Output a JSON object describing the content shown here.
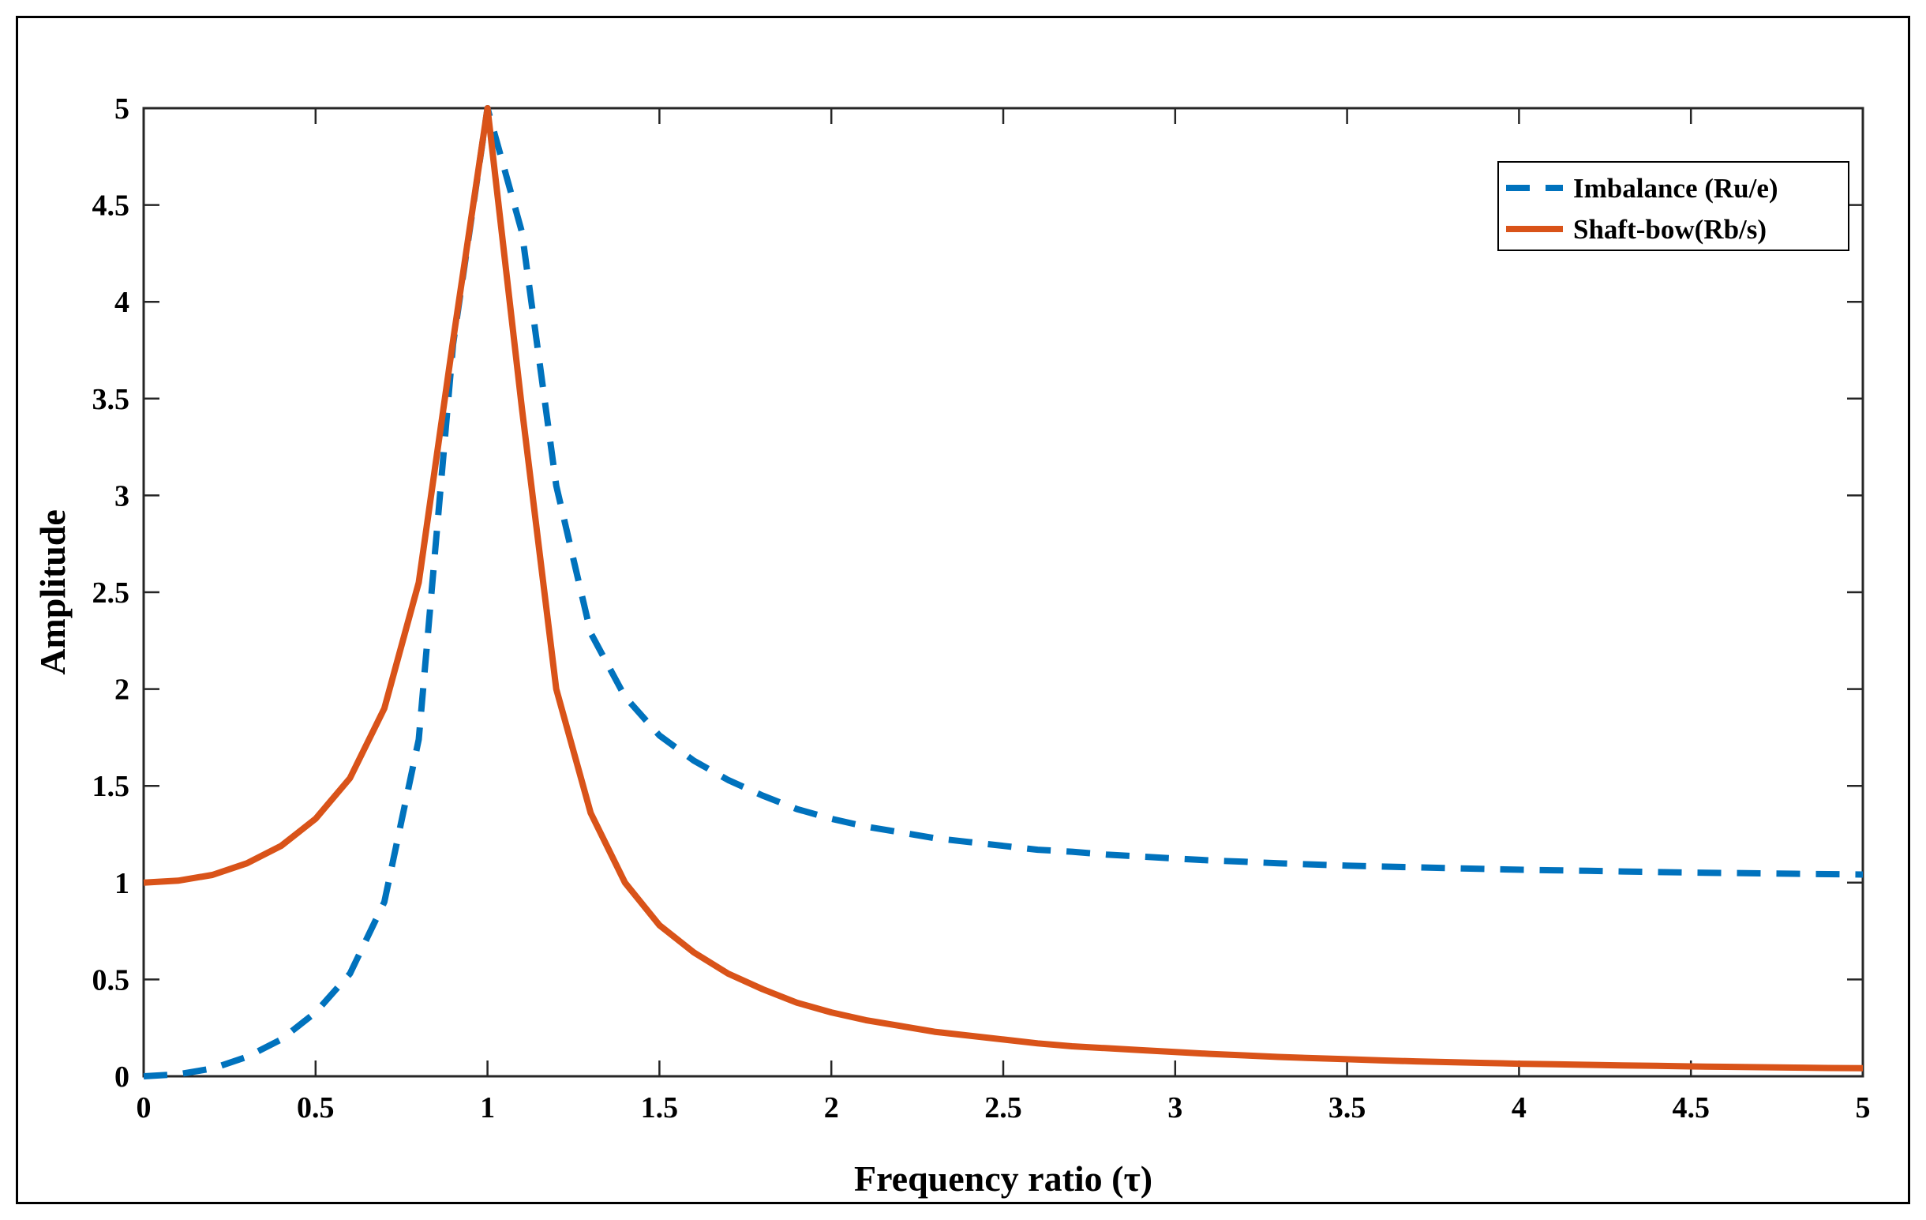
{
  "chart_data": {
    "type": "line",
    "xlabel": "Frequency ratio (τ)",
    "ylabel": "Amplitude",
    "xlim": [
      0,
      5
    ],
    "ylim": [
      0,
      5
    ],
    "xticks": [
      0,
      0.5,
      1,
      1.5,
      2,
      2.5,
      3,
      3.5,
      4,
      4.5,
      5
    ],
    "xtick_labels": [
      "0",
      "0.5",
      "1",
      "1.5",
      "2",
      "2.5",
      "3",
      "3.5",
      "4",
      "4.5",
      "5"
    ],
    "yticks": [
      0,
      0.5,
      1,
      1.5,
      2,
      2.5,
      3,
      3.5,
      4,
      4.5,
      5
    ],
    "ytick_labels": [
      "0",
      "0.5",
      "1",
      "1.5",
      "2",
      "2.5",
      "3",
      "3.5",
      "4",
      "4.5",
      "5"
    ],
    "grid": false,
    "legend_position": "top-right",
    "x": [
      0,
      0.1,
      0.2,
      0.3,
      0.4,
      0.5,
      0.6,
      0.7,
      0.8,
      0.9,
      1.0,
      1.1,
      1.2,
      1.3,
      1.4,
      1.5,
      1.6,
      1.7,
      1.8,
      1.9,
      2.0,
      2.1,
      2.2,
      2.3,
      2.4,
      2.5,
      2.6,
      2.7,
      2.8,
      2.9,
      3.0,
      3.1,
      3.2,
      3.3,
      3.4,
      3.5,
      3.6,
      3.7,
      3.8,
      3.9,
      4.0,
      4.1,
      4.2,
      4.3,
      4.4,
      4.5,
      4.6,
      4.7,
      4.8,
      4.9,
      5.0
    ],
    "series": [
      {
        "name": "Imbalance (Ru/e)",
        "style": "dashed",
        "color": "#0072BD",
        "values": [
          0,
          0.01,
          0.04,
          0.1,
          0.19,
          0.33,
          0.53,
          0.9,
          1.74,
          3.78,
          5.0,
          4.36,
          3.05,
          2.29,
          1.96,
          1.76,
          1.63,
          1.53,
          1.45,
          1.38,
          1.33,
          1.29,
          1.26,
          1.23,
          1.21,
          1.19,
          1.17,
          1.16,
          1.145,
          1.135,
          1.125,
          1.115,
          1.108,
          1.1,
          1.094,
          1.088,
          1.083,
          1.079,
          1.075,
          1.071,
          1.067,
          1.064,
          1.061,
          1.058,
          1.055,
          1.052,
          1.05,
          1.048,
          1.046,
          1.044,
          1.042
        ]
      },
      {
        "name": "Shaft-bow(Rb/s)",
        "style": "solid",
        "color": "#D95319",
        "values": [
          1.0,
          1.01,
          1.04,
          1.1,
          1.19,
          1.33,
          1.54,
          1.9,
          2.55,
          3.8,
          5.0,
          3.45,
          2.0,
          1.36,
          1.0,
          0.78,
          0.64,
          0.53,
          0.45,
          0.38,
          0.33,
          0.29,
          0.26,
          0.23,
          0.21,
          0.19,
          0.17,
          0.155,
          0.145,
          0.135,
          0.125,
          0.116,
          0.108,
          0.1,
          0.094,
          0.088,
          0.082,
          0.077,
          0.073,
          0.069,
          0.065,
          0.062,
          0.059,
          0.056,
          0.054,
          0.051,
          0.049,
          0.047,
          0.045,
          0.043,
          0.042
        ]
      }
    ]
  }
}
